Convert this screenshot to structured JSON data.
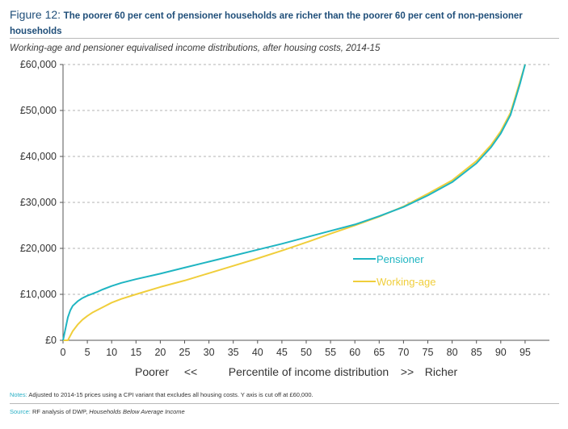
{
  "figure": {
    "label": "Figure 12:",
    "title": "The poorer 60 per cent of pensioner households are richer than the poorer 60 per cent of non-pensioner households",
    "subtitle": "Working-age and pensioner equivalised income distributions, after housing costs, 2014-15"
  },
  "chart_data": {
    "type": "line",
    "xlabel_parts": [
      "Poorer",
      "<<",
      "Percentile of income distribution",
      ">>",
      "Richer"
    ],
    "ylabel": "",
    "xlim": [
      0,
      100
    ],
    "ylim": [
      0,
      60000
    ],
    "x_ticks": [
      0,
      5,
      10,
      15,
      20,
      25,
      30,
      35,
      40,
      45,
      50,
      55,
      60,
      65,
      70,
      75,
      80,
      85,
      90,
      95
    ],
    "y_ticks": [
      {
        "value": 0,
        "label": "£0"
      },
      {
        "value": 10000,
        "label": "£10,000"
      },
      {
        "value": 20000,
        "label": "£20,000"
      },
      {
        "value": 30000,
        "label": "£30,000"
      },
      {
        "value": 40000,
        "label": "£40,000"
      },
      {
        "value": 50000,
        "label": "£50,000"
      },
      {
        "value": 60000,
        "label": "£60,000"
      }
    ],
    "grid": true,
    "legend_position": "center-right",
    "series": [
      {
        "name": "Pensioner",
        "color": "#1fb5c2",
        "x": [
          0,
          0.5,
          1,
          1.5,
          2,
          3,
          4,
          5,
          6,
          7,
          8,
          10,
          12,
          15,
          20,
          25,
          30,
          35,
          40,
          45,
          50,
          55,
          60,
          65,
          70,
          75,
          80,
          85,
          88,
          90,
          92,
          93,
          94,
          95
        ],
        "y": [
          0,
          2500,
          5000,
          6500,
          7500,
          8500,
          9200,
          9700,
          10100,
          10500,
          11000,
          11800,
          12500,
          13300,
          14500,
          15800,
          17100,
          18400,
          19700,
          21000,
          22400,
          23800,
          25200,
          27000,
          29000,
          31500,
          34400,
          38500,
          42000,
          45000,
          49000,
          52500,
          56000,
          60000
        ]
      },
      {
        "name": "Working-age",
        "color": "#f0ce3b",
        "x": [
          0,
          1,
          1.5,
          2,
          3,
          4,
          5,
          6,
          8,
          10,
          12,
          15,
          20,
          25,
          30,
          35,
          40,
          45,
          50,
          55,
          60,
          65,
          70,
          75,
          80,
          85,
          88,
          90,
          92,
          93,
          94,
          95
        ],
        "y": [
          0,
          0,
          1000,
          2000,
          3400,
          4500,
          5300,
          6000,
          7100,
          8200,
          9000,
          10000,
          11600,
          13000,
          14600,
          16200,
          17800,
          19500,
          21300,
          23200,
          25000,
          26900,
          29100,
          31900,
          34800,
          39000,
          42500,
          45500,
          49500,
          53000,
          56500,
          60000
        ]
      }
    ]
  },
  "notes": {
    "label": "Notes:",
    "text": "Adjusted to 2014-15 prices using a CPI variant that excludes all housing costs. Y axis is cut off at £60,000."
  },
  "source": {
    "label": "Source:",
    "text_plain": "RF analysis of DWP, ",
    "text_italic": "Households Below Average Income"
  }
}
